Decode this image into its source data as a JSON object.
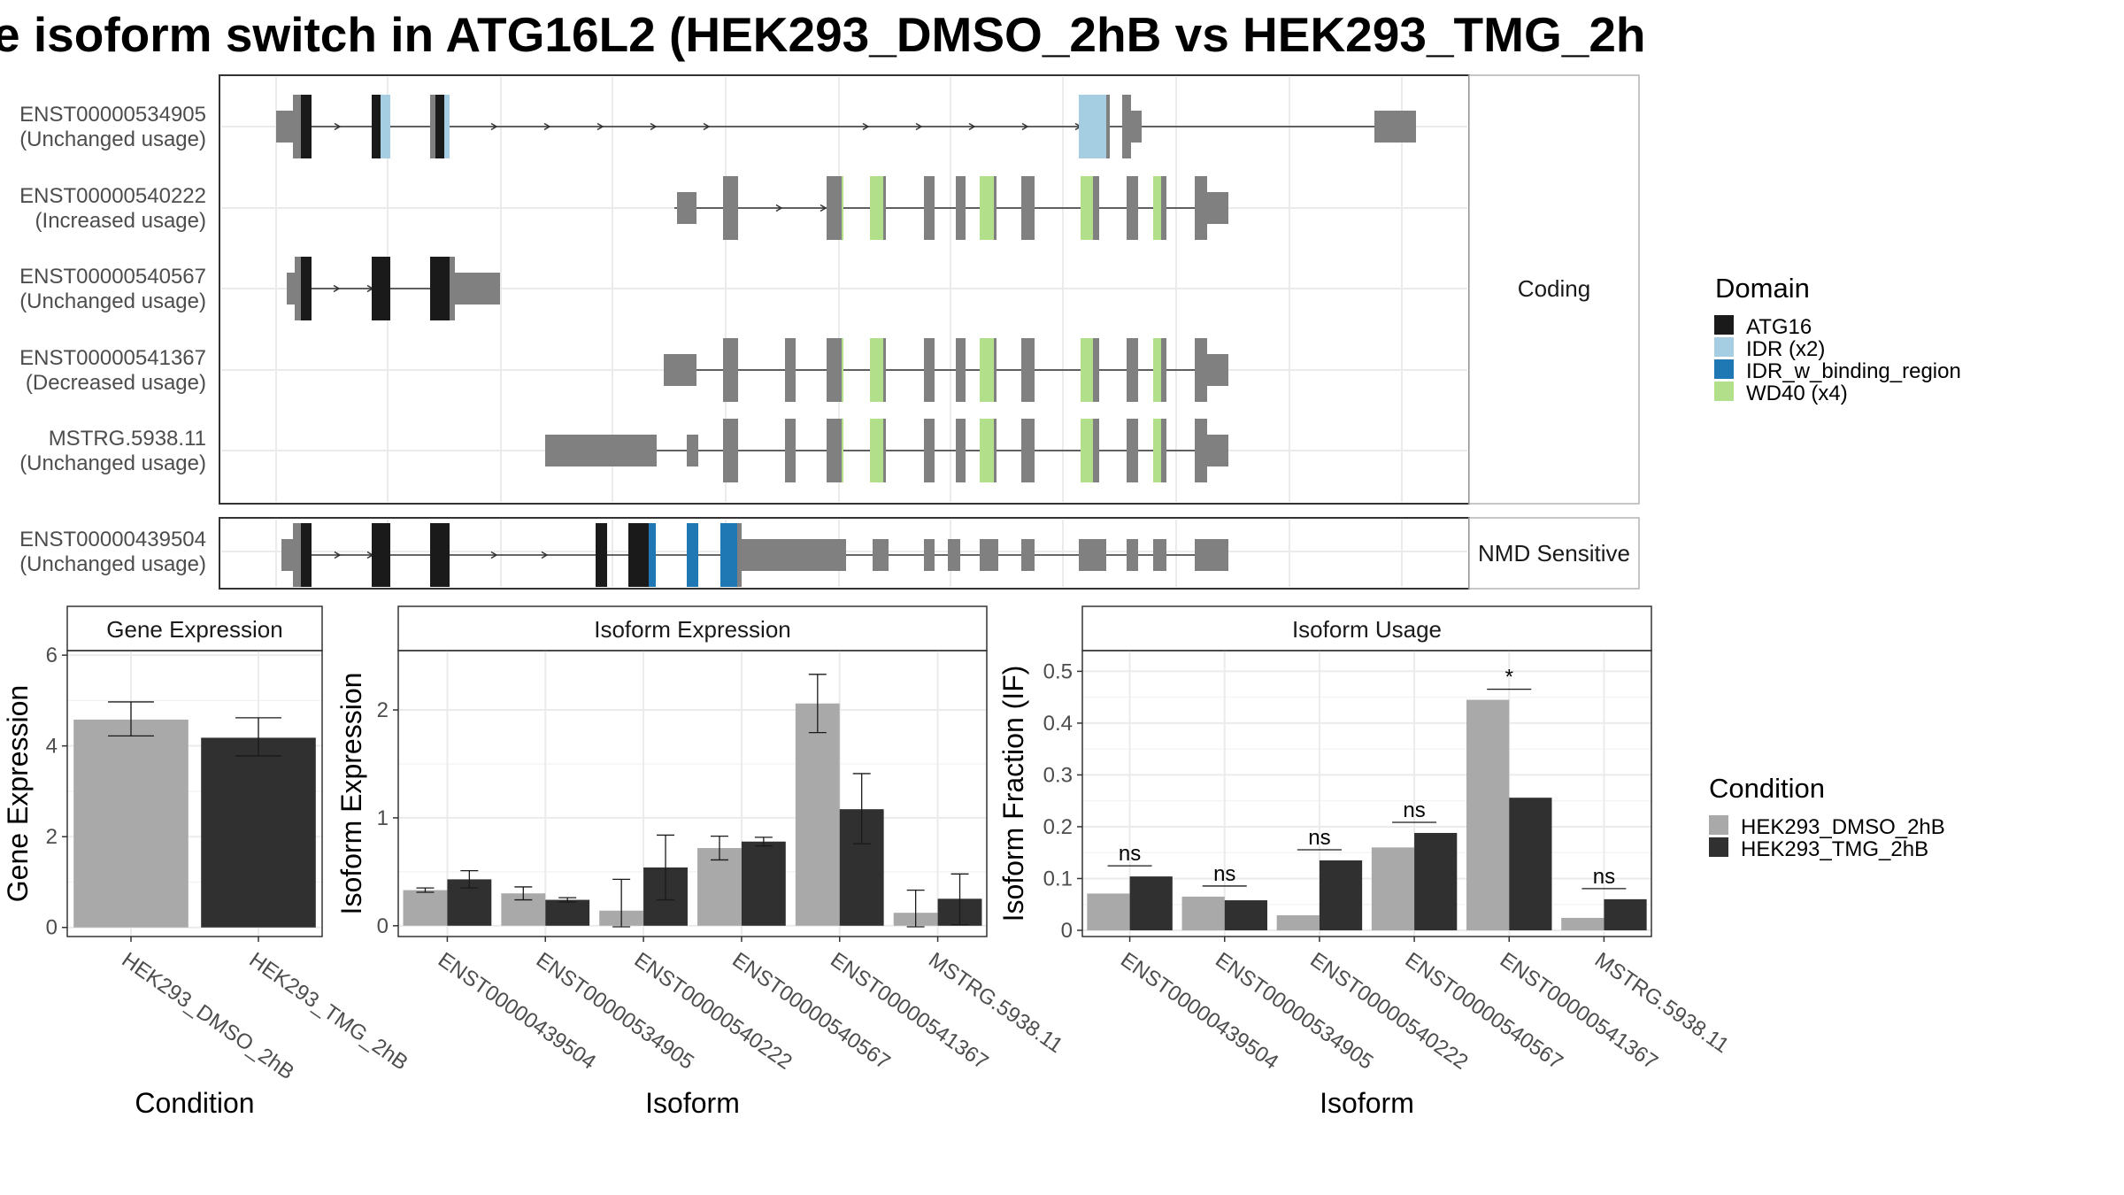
{
  "title": "e isoform switch in ATG16L2 (HEK293_DMSO_2hB vs HEK293_TMG_2h",
  "colors": {
    "ATG16": "#1a1a1a",
    "IDR (x2)": "#a6cee3",
    "IDR_w_binding_region": "#1f78b4",
    "WD40 (x4)": "#b2df8a",
    "exon": "#808080",
    "HEK293_DMSO_2hB": "#a9a9a9",
    "HEK293_TMG_2hB": "#303030"
  },
  "isoform_panel": {
    "coding_strip": "Coding",
    "nmd_strip": "NMD Sensitive",
    "isoforms": [
      {
        "id": "ENST00000534905",
        "usage": "(Unchanged usage)",
        "group": "coding"
      },
      {
        "id": "ENST00000540222",
        "usage": "(Increased usage)",
        "group": "coding"
      },
      {
        "id": "ENST00000540567",
        "usage": "(Unchanged usage)",
        "group": "coding"
      },
      {
        "id": "ENST00000541367",
        "usage": "(Decreased usage)",
        "group": "coding"
      },
      {
        "id": "MSTRG.5938.11",
        "usage": "(Unchanged usage)",
        "group": "coding"
      },
      {
        "id": "ENST00000439504",
        "usage": "(Unchanged usage)",
        "group": "nmd"
      }
    ]
  },
  "domain_legend": {
    "title": "Domain",
    "items": [
      "ATG16",
      "IDR (x2)",
      "IDR_w_binding_region",
      "WD40 (x4)"
    ]
  },
  "condition_legend": {
    "title": "Condition",
    "items": [
      "HEK293_DMSO_2hB",
      "HEK293_TMG_2hB"
    ]
  },
  "chart_data": [
    {
      "type": "bar",
      "title": "Gene Expression",
      "xlabel": "Condition",
      "ylabel": "Gene Expression",
      "categories": [
        "HEK293_DMSO_2hB",
        "HEK293_TMG_2hB"
      ],
      "values": [
        4.58,
        4.18
      ],
      "errors": [
        [
          4.22,
          4.97
        ],
        [
          3.78,
          4.62
        ]
      ],
      "ylim": [
        -0.2,
        6.1
      ],
      "yticks": [
        0,
        2,
        4,
        6
      ],
      "grid": true
    },
    {
      "type": "bar",
      "title": "Isoform Expression",
      "xlabel": "Isoform",
      "ylabel": "Isoform Expression",
      "categories": [
        "ENST00000439504",
        "ENST00000534905",
        "ENST00000540222",
        "ENST00000540567",
        "ENST00000541367",
        "MSTRG.5938.11"
      ],
      "series": [
        {
          "name": "HEK293_DMSO_2hB",
          "values": [
            0.33,
            0.3,
            0.14,
            0.72,
            2.06,
            0.12
          ],
          "errors": [
            [
              0.31,
              0.35
            ],
            [
              0.24,
              0.36
            ],
            [
              -0.01,
              0.43
            ],
            [
              0.61,
              0.83
            ],
            [
              1.79,
              2.33
            ],
            [
              -0.01,
              0.33
            ]
          ]
        },
        {
          "name": "HEK293_TMG_2hB",
          "values": [
            0.43,
            0.24,
            0.54,
            0.78,
            1.08,
            0.25
          ],
          "errors": [
            [
              0.35,
              0.51
            ],
            [
              0.22,
              0.26
            ],
            [
              0.24,
              0.84
            ],
            [
              0.74,
              0.82
            ],
            [
              0.76,
              1.41
            ],
            [
              0.01,
              0.48
            ]
          ]
        }
      ],
      "ylim": [
        -0.1,
        2.55
      ],
      "yticks": [
        0,
        1,
        2
      ],
      "grid": true
    },
    {
      "type": "bar",
      "title": "Isoform Usage",
      "xlabel": "Isoform",
      "ylabel": "Isoform Fraction (IF)",
      "categories": [
        "ENST00000439504",
        "ENST00000534905",
        "ENST00000540222",
        "ENST00000540567",
        "ENST00000541367",
        "MSTRG.5938.11"
      ],
      "series": [
        {
          "name": "HEK293_DMSO_2hB",
          "values": [
            0.071,
            0.065,
            0.029,
            0.16,
            0.445,
            0.024
          ]
        },
        {
          "name": "HEK293_TMG_2hB",
          "values": [
            0.104,
            0.058,
            0.135,
            0.188,
            0.256,
            0.06
          ]
        }
      ],
      "significance": [
        "ns",
        "ns",
        "ns",
        "ns",
        "*",
        "ns"
      ],
      "ylim": [
        -0.012,
        0.54
      ],
      "yticks": [
        0,
        0.1,
        0.2,
        0.3,
        0.4,
        0.5
      ],
      "grid": true
    }
  ]
}
